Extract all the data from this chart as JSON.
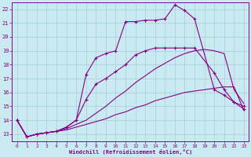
{
  "xlabel": "Windchill (Refroidissement éolien,°C)",
  "xlim": [
    -0.5,
    23.5
  ],
  "ylim": [
    12.5,
    22.5
  ],
  "xticks": [
    0,
    1,
    2,
    3,
    4,
    5,
    6,
    7,
    8,
    9,
    10,
    11,
    12,
    13,
    14,
    15,
    16,
    17,
    18,
    19,
    20,
    21,
    22,
    23
  ],
  "yticks": [
    13,
    14,
    15,
    16,
    17,
    18,
    19,
    20,
    21,
    22
  ],
  "bg_color": "#c8eaf0",
  "line_color": "#880088",
  "grid_color": "#aaccdd",
  "lines": [
    {
      "x": [
        0,
        1,
        2,
        3,
        4,
        5,
        6,
        7,
        8,
        9,
        10,
        11,
        12,
        13,
        14,
        15,
        16,
        17,
        18,
        19,
        20,
        21,
        22,
        23
      ],
      "y": [
        14,
        12.8,
        13.0,
        13.1,
        13.2,
        13.3,
        13.5,
        13.7,
        13.9,
        14.1,
        14.4,
        14.6,
        14.9,
        15.1,
        15.4,
        15.6,
        15.8,
        16.0,
        16.1,
        16.2,
        16.3,
        16.4,
        16.4,
        14.7
      ],
      "has_markers": false
    },
    {
      "x": [
        0,
        1,
        2,
        3,
        4,
        5,
        6,
        7,
        8,
        9,
        10,
        11,
        12,
        13,
        14,
        15,
        16,
        17,
        18,
        19,
        20,
        21,
        22,
        23
      ],
      "y": [
        14,
        12.8,
        13.0,
        13.1,
        13.2,
        13.4,
        13.7,
        14.0,
        14.5,
        15.0,
        15.6,
        16.1,
        16.7,
        17.2,
        17.7,
        18.1,
        18.5,
        18.8,
        19.0,
        19.1,
        19.0,
        18.8,
        16.2,
        15.2
      ],
      "has_markers": false
    },
    {
      "x": [
        0,
        1,
        2,
        3,
        4,
        5,
        6,
        7,
        8,
        9,
        10,
        11,
        12,
        13,
        14,
        15,
        16,
        17,
        18,
        20,
        21,
        22,
        23
      ],
      "y": [
        14,
        12.8,
        13.0,
        13.1,
        13.2,
        13.5,
        14.0,
        15.5,
        16.6,
        17.0,
        17.5,
        18.0,
        18.7,
        19.0,
        19.2,
        19.2,
        19.2,
        19.2,
        19.2,
        17.4,
        16.2,
        15.3,
        15.0
      ],
      "has_markers": true
    },
    {
      "x": [
        0,
        1,
        2,
        3,
        4,
        5,
        6,
        7,
        8,
        9,
        10,
        11,
        12,
        13,
        14,
        15,
        16,
        17,
        18,
        20,
        21,
        22,
        23
      ],
      "y": [
        14,
        12.8,
        13.0,
        13.1,
        13.2,
        13.5,
        14.0,
        17.3,
        18.5,
        18.8,
        19.0,
        21.1,
        21.1,
        21.2,
        21.2,
        21.3,
        22.3,
        21.9,
        21.3,
        16.2,
        15.8,
        15.3,
        14.8
      ],
      "has_markers": true
    }
  ]
}
